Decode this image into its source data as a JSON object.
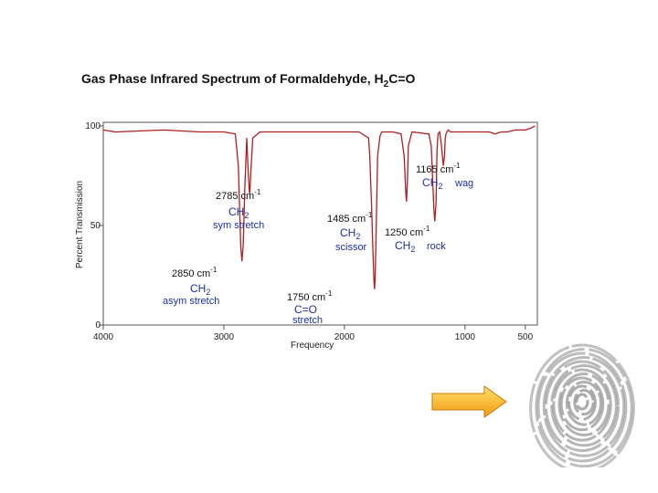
{
  "slide": {
    "title_prefix": "Gas Phase Infrared Spectrum of Formaldehyde, H",
    "title_sub": "2",
    "title_suffix": "C=O"
  },
  "chart_data": {
    "type": "line",
    "title": "",
    "xlabel": "Frequency",
    "ylabel": "Percent Transmission",
    "xlim": [
      4000,
      400
    ],
    "ylim": [
      0,
      100
    ],
    "x_ticks": [
      {
        "value": 4000,
        "label": "4000"
      },
      {
        "value": 3000,
        "label": "3000"
      },
      {
        "value": 2000,
        "label": "2000"
      },
      {
        "value": 1000,
        "label": "1000"
      },
      {
        "value": 500,
        "label": "500"
      }
    ],
    "y_ticks": [
      {
        "value": 100,
        "label": "100"
      },
      {
        "value": 50,
        "label": "50"
      },
      {
        "value": 0,
        "label": "0"
      }
    ],
    "line_color": "#b01e1e",
    "series": [
      {
        "x": [
          4000,
          3900,
          3500,
          3200,
          3000,
          2905,
          2880,
          2870,
          2860,
          2850,
          2840,
          2825,
          2810,
          2800,
          2790,
          2785,
          2775,
          2760,
          2700,
          2400,
          2100,
          1880,
          1800,
          1790,
          1775,
          1765,
          1760,
          1755,
          1750,
          1745,
          1738,
          1725,
          1705,
          1690,
          1600,
          1530,
          1505,
          1495,
          1490,
          1485,
          1478,
          1470,
          1440,
          1300,
          1280,
          1268,
          1258,
          1250,
          1240,
          1232,
          1224,
          1210,
          1195,
          1180,
          1170,
          1165,
          1158,
          1150,
          1140,
          1120,
          1000,
          800,
          750,
          700,
          650,
          580,
          500,
          450,
          420
        ],
        "y": [
          98,
          97,
          98,
          97,
          97,
          96,
          80,
          60,
          40,
          32,
          40,
          70,
          94,
          80,
          68,
          66,
          78,
          94,
          97,
          97,
          97,
          97,
          94,
          85,
          60,
          40,
          30,
          22,
          18,
          24,
          45,
          85,
          95,
          97,
          97,
          96,
          85,
          72,
          65,
          62,
          72,
          90,
          97,
          96,
          90,
          72,
          58,
          52,
          62,
          88,
          96,
          97,
          90,
          80,
          85,
          93,
          96,
          97,
          98,
          97,
          97,
          97,
          96,
          97,
          97,
          98,
          98,
          99,
          100
        ]
      }
    ],
    "annotations": [
      {
        "id": "a2850",
        "wavenumber": "2850 cm",
        "exp": "-1",
        "group": "CH",
        "group_sub": "2",
        "mode": "asym stretch"
      },
      {
        "id": "a2785",
        "wavenumber": "2785 cm",
        "exp": "-1",
        "group": "CH",
        "group_sub": "2",
        "mode": "sym stretch"
      },
      {
        "id": "a1750",
        "wavenumber": "1750 cm",
        "exp": "-1",
        "group": "C=O",
        "group_sub": "",
        "mode": "stretch"
      },
      {
        "id": "a1485",
        "wavenumber": "1485 cm",
        "exp": "-1",
        "group": "CH",
        "group_sub": "2",
        "mode": "scissor"
      },
      {
        "id": "a1250",
        "wavenumber": "1250 cm",
        "exp": "-1",
        "group": "CH",
        "group_sub": "2",
        "mode": "rock"
      },
      {
        "id": "a1165",
        "wavenumber": "1165 cm",
        "exp": "-1",
        "group": "CH",
        "group_sub": "2",
        "mode": "wag"
      }
    ]
  },
  "decor": {
    "arrow_colors": [
      "#ffe066",
      "#f29a12"
    ],
    "fingerprint_color": "#9a9a9a"
  }
}
